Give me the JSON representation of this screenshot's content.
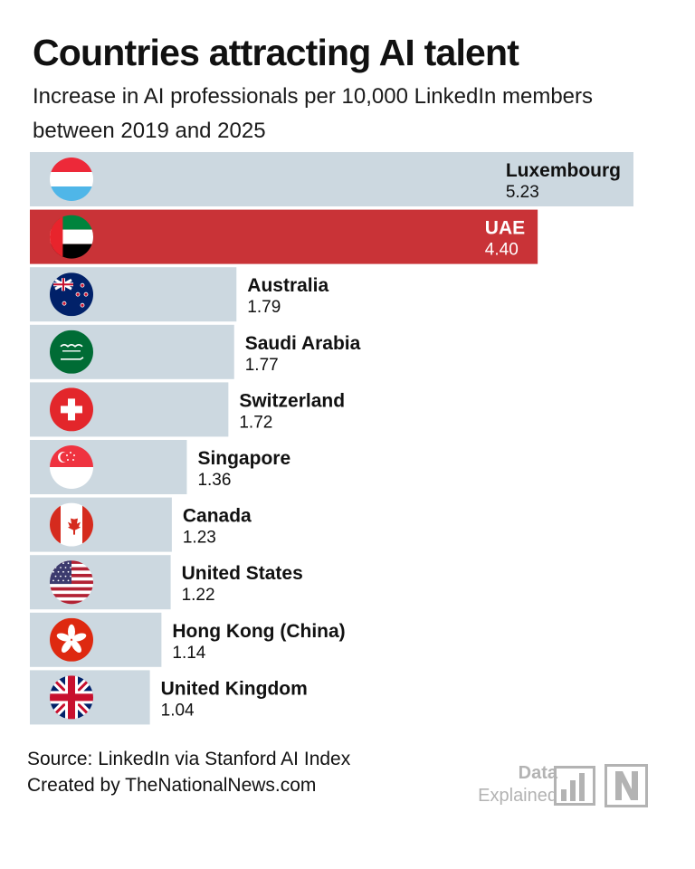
{
  "header": {
    "title": "Countries attracting AI talent",
    "subtitle": "Increase in AI professionals per 10,000 LinkedIn members between 2019 and 2025"
  },
  "chart_data": {
    "type": "bar",
    "orientation": "horizontal",
    "title": "Countries attracting AI talent",
    "subtitle": "Increase in AI professionals per 10,000 LinkedIn members between 2019 and 2025",
    "categories": [
      "Luxembourg",
      "UAE",
      "Australia",
      "Saudi Arabia",
      "Switzerland",
      "Singapore",
      "Canada",
      "United States",
      "Hong Kong (China)",
      "United Kingdom"
    ],
    "values": [
      5.23,
      4.4,
      1.79,
      1.77,
      1.72,
      1.36,
      1.23,
      1.22,
      1.14,
      1.04
    ],
    "value_labels": [
      "5.23",
      "4.40",
      "1.79",
      "1.77",
      "1.72",
      "1.36",
      "1.23",
      "1.22",
      "1.14",
      "1.04"
    ],
    "flags": [
      "luxembourg-flag",
      "uae-flag",
      "australia-flag",
      "saudi-arabia-flag",
      "switzerland-flag",
      "singapore-flag",
      "canada-flag",
      "united-states-flag",
      "hong-kong-flag",
      "united-kingdom-flag"
    ],
    "highlight": "UAE",
    "colors": {
      "bar": "#ccd8e0",
      "highlight": "#c93337",
      "label": "#111111",
      "label_highlight": "#ffffff"
    },
    "xlim": [
      0,
      5.23
    ],
    "grid": false,
    "legend": "none"
  },
  "footer": {
    "source": "Source: LinkedIn via Stanford AI Index",
    "credit": "Created by TheNationalNews.com"
  },
  "logo": {
    "line1": "Data",
    "line2": "Explained",
    "color": "#b3b3b3"
  }
}
